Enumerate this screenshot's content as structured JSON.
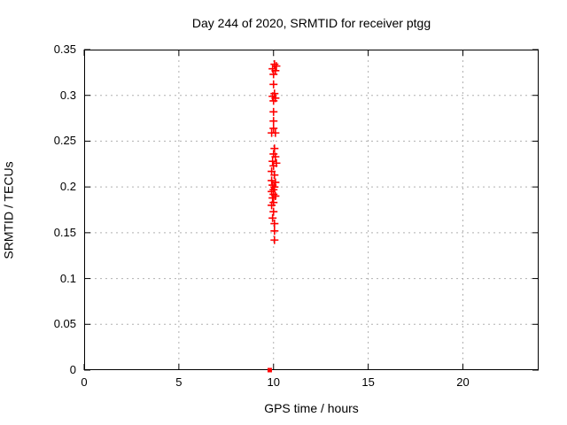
{
  "chart_data": {
    "type": "scatter",
    "title": "Day 244 of 2020, SRMTID for receiver ptgg",
    "xlabel": "GPS time / hours",
    "ylabel": "SRMTID / TECUs",
    "xlim": [
      0,
      24
    ],
    "ylim": [
      0,
      0.35
    ],
    "x_ticks": [
      0,
      5,
      10,
      15,
      20
    ],
    "x_tick_labels": [
      "0",
      "5",
      "10",
      "15",
      "20"
    ],
    "y_ticks": [
      0,
      0.05,
      0.1,
      0.15,
      0.2,
      0.25,
      0.3,
      0.35
    ],
    "y_tick_labels": [
      "0",
      "0.05",
      "0.1",
      "0.15",
      "0.2",
      "0.25",
      "0.3",
      "0.35"
    ],
    "grid": true,
    "legend": "none",
    "colors": {
      "marker": "#ff0000",
      "grid": "#b0b0b0",
      "axis": "#000000",
      "text": "#000000",
      "background": "#ffffff"
    },
    "series": [
      {
        "name": "SRMTID points",
        "marker": "plus",
        "points": [
          [
            10.05,
            0.334
          ],
          [
            10.15,
            0.332
          ],
          [
            9.95,
            0.329
          ],
          [
            10.1,
            0.327
          ],
          [
            10.0,
            0.323
          ],
          [
            10.0,
            0.312
          ],
          [
            10.05,
            0.302
          ],
          [
            9.95,
            0.299
          ],
          [
            10.1,
            0.297
          ],
          [
            10.0,
            0.294
          ],
          [
            10.0,
            0.282
          ],
          [
            10.0,
            0.272
          ],
          [
            10.0,
            0.264
          ],
          [
            9.9,
            0.259
          ],
          [
            10.1,
            0.259
          ],
          [
            10.05,
            0.242
          ],
          [
            10.0,
            0.236
          ],
          [
            10.1,
            0.233
          ],
          [
            9.95,
            0.228
          ],
          [
            10.15,
            0.226
          ],
          [
            10.0,
            0.223
          ],
          [
            9.9,
            0.217
          ],
          [
            10.05,
            0.213
          ],
          [
            9.9,
            0.207
          ],
          [
            10.1,
            0.205
          ],
          [
            9.95,
            0.202
          ],
          [
            10.05,
            0.2
          ],
          [
            10.0,
            0.197
          ],
          [
            9.9,
            0.195
          ],
          [
            10.0,
            0.192
          ],
          [
            10.1,
            0.19
          ],
          [
            9.95,
            0.188
          ],
          [
            10.0,
            0.183
          ],
          [
            9.9,
            0.18
          ],
          [
            10.0,
            0.173
          ],
          [
            9.95,
            0.166
          ],
          [
            10.05,
            0.16
          ],
          [
            10.05,
            0.152
          ],
          [
            10.05,
            0.142
          ]
        ]
      },
      {
        "name": "zero marker",
        "marker": "filled-square",
        "points": [
          [
            9.8,
            0.0
          ]
        ]
      }
    ]
  }
}
